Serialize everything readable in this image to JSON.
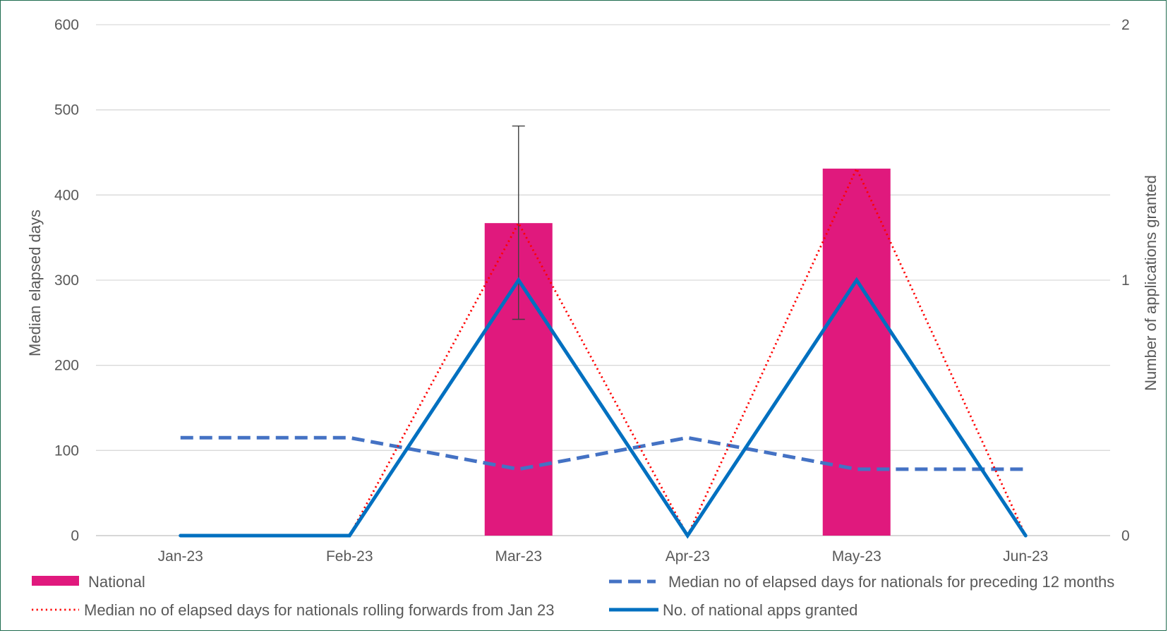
{
  "chart_data": {
    "type": "bar",
    "categories": [
      "Jan-23",
      "Feb-23",
      "Mar-23",
      "Apr-23",
      "May-23",
      "Jun-23"
    ],
    "ylabel": "Median elapsed days",
    "ylim": [
      0,
      600
    ],
    "yticks": [
      0,
      100,
      200,
      300,
      400,
      500,
      600
    ],
    "y2label": "Number of applications granted",
    "y2lim": [
      0,
      2
    ],
    "y2ticks": [
      0,
      1,
      2
    ],
    "grid": true,
    "legend_position": "bottom",
    "series": [
      {
        "name": "National",
        "kind": "bar",
        "axis": "left",
        "color": "#e0197d",
        "values": [
          null,
          null,
          367,
          null,
          431,
          null
        ],
        "error_bars": [
          null,
          null,
          {
            "low": 254,
            "high": 481
          },
          null,
          null,
          null
        ]
      },
      {
        "name": "Median no of elapsed days for nationals for preceding 12 months",
        "kind": "line",
        "style": "dashed",
        "axis": "left",
        "color": "#4472c4",
        "values": [
          115,
          115,
          78,
          115,
          78,
          78
        ]
      },
      {
        "name": "Median no of elapsed days for nationals rolling forwards from Jan 23",
        "kind": "line",
        "style": "dotted",
        "axis": "left",
        "color": "#ff0000",
        "values": [
          0,
          0,
          367,
          0,
          431,
          0
        ]
      },
      {
        "name": "No. of national apps granted",
        "kind": "line",
        "style": "solid",
        "axis": "right",
        "color": "#0070c0",
        "values": [
          0,
          0,
          1,
          0,
          1,
          0
        ]
      }
    ]
  }
}
